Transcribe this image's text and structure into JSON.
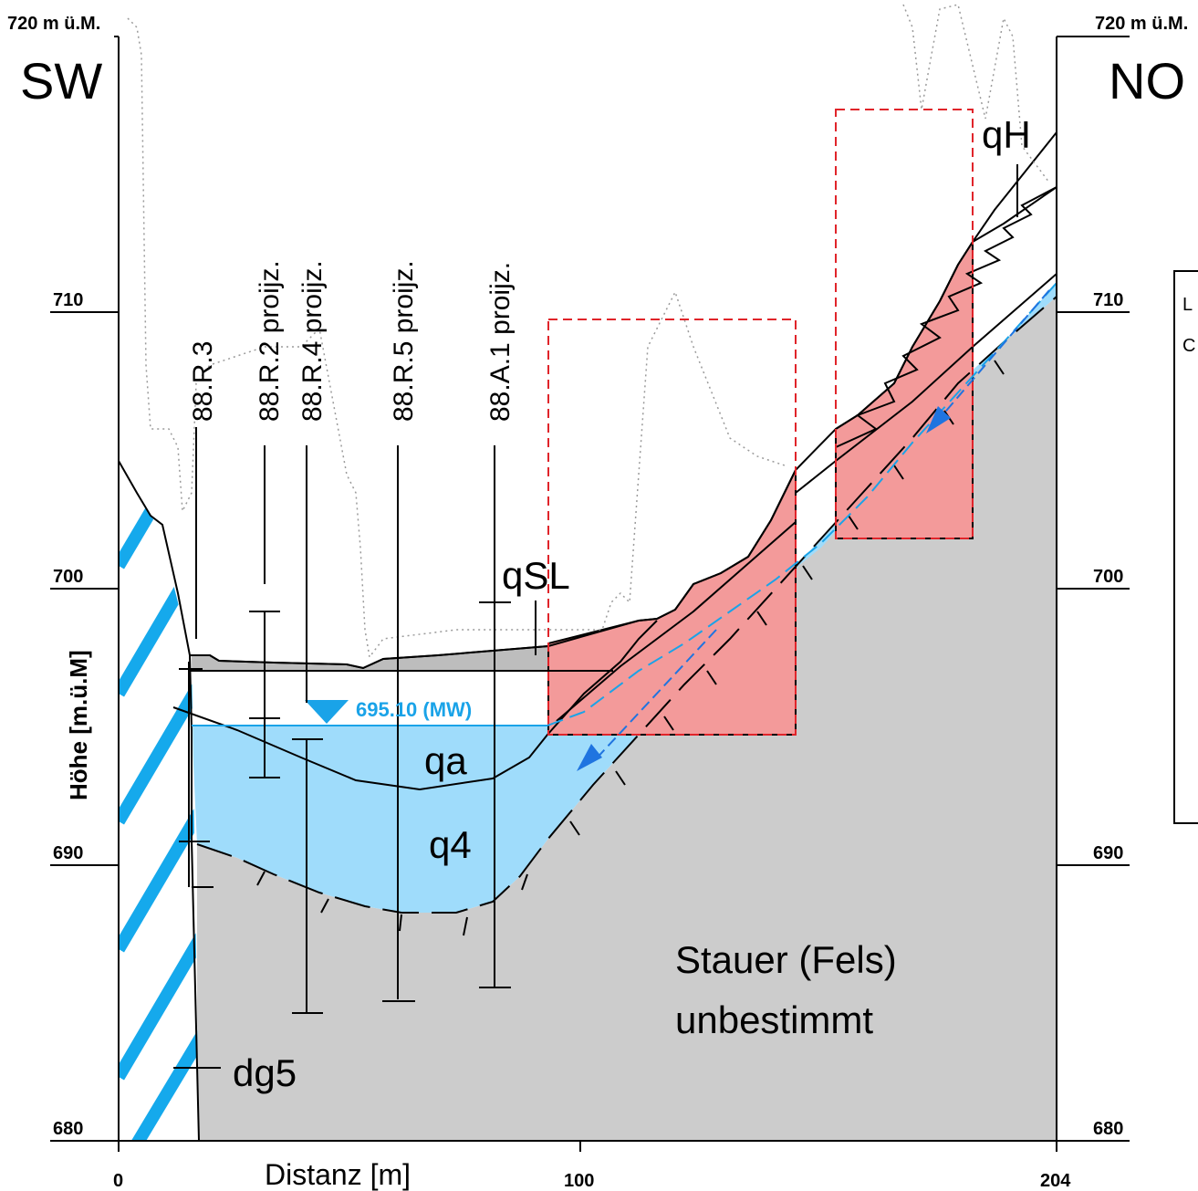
{
  "orientation": {
    "left": "SW",
    "right": "NO"
  },
  "elevation_axis": {
    "top_label_left": "720 m ü.M.",
    "top_label_right": "720 m ü.M.",
    "ticks": [
      "710",
      "700",
      "690",
      "680"
    ],
    "ylabel": "Höhe [m.ü.M]"
  },
  "distance_axis": {
    "ticks": [
      "0",
      "100",
      "204"
    ],
    "xlabel": "Distanz [m]"
  },
  "boreholes": [
    "88.R.3",
    "88.R.2 proijz.",
    "88.R.4 proijz.",
    "88.R.5 proijz.",
    "88.A.1 proijz."
  ],
  "water_level": {
    "label": "695.10 (MW)",
    "value": 695.1
  },
  "units": {
    "qSL": "qSL",
    "qH": "qH",
    "qa": "qa",
    "q4": "q4",
    "dg5": "dg5",
    "bedrock_line1": "Stauer (Fels)",
    "bedrock_line2": "unbestimmt"
  },
  "legend_partial": {
    "line1": "L",
    "line2": "C"
  },
  "colors": {
    "water": "#9fdcfb",
    "water_line": "#1aa3e8",
    "slide": "#f39a9a",
    "bedrock": "#cccccc",
    "hatch": "#15a9ec",
    "arrow": "#1f74e0",
    "frame_dashed": "#e0242a"
  }
}
